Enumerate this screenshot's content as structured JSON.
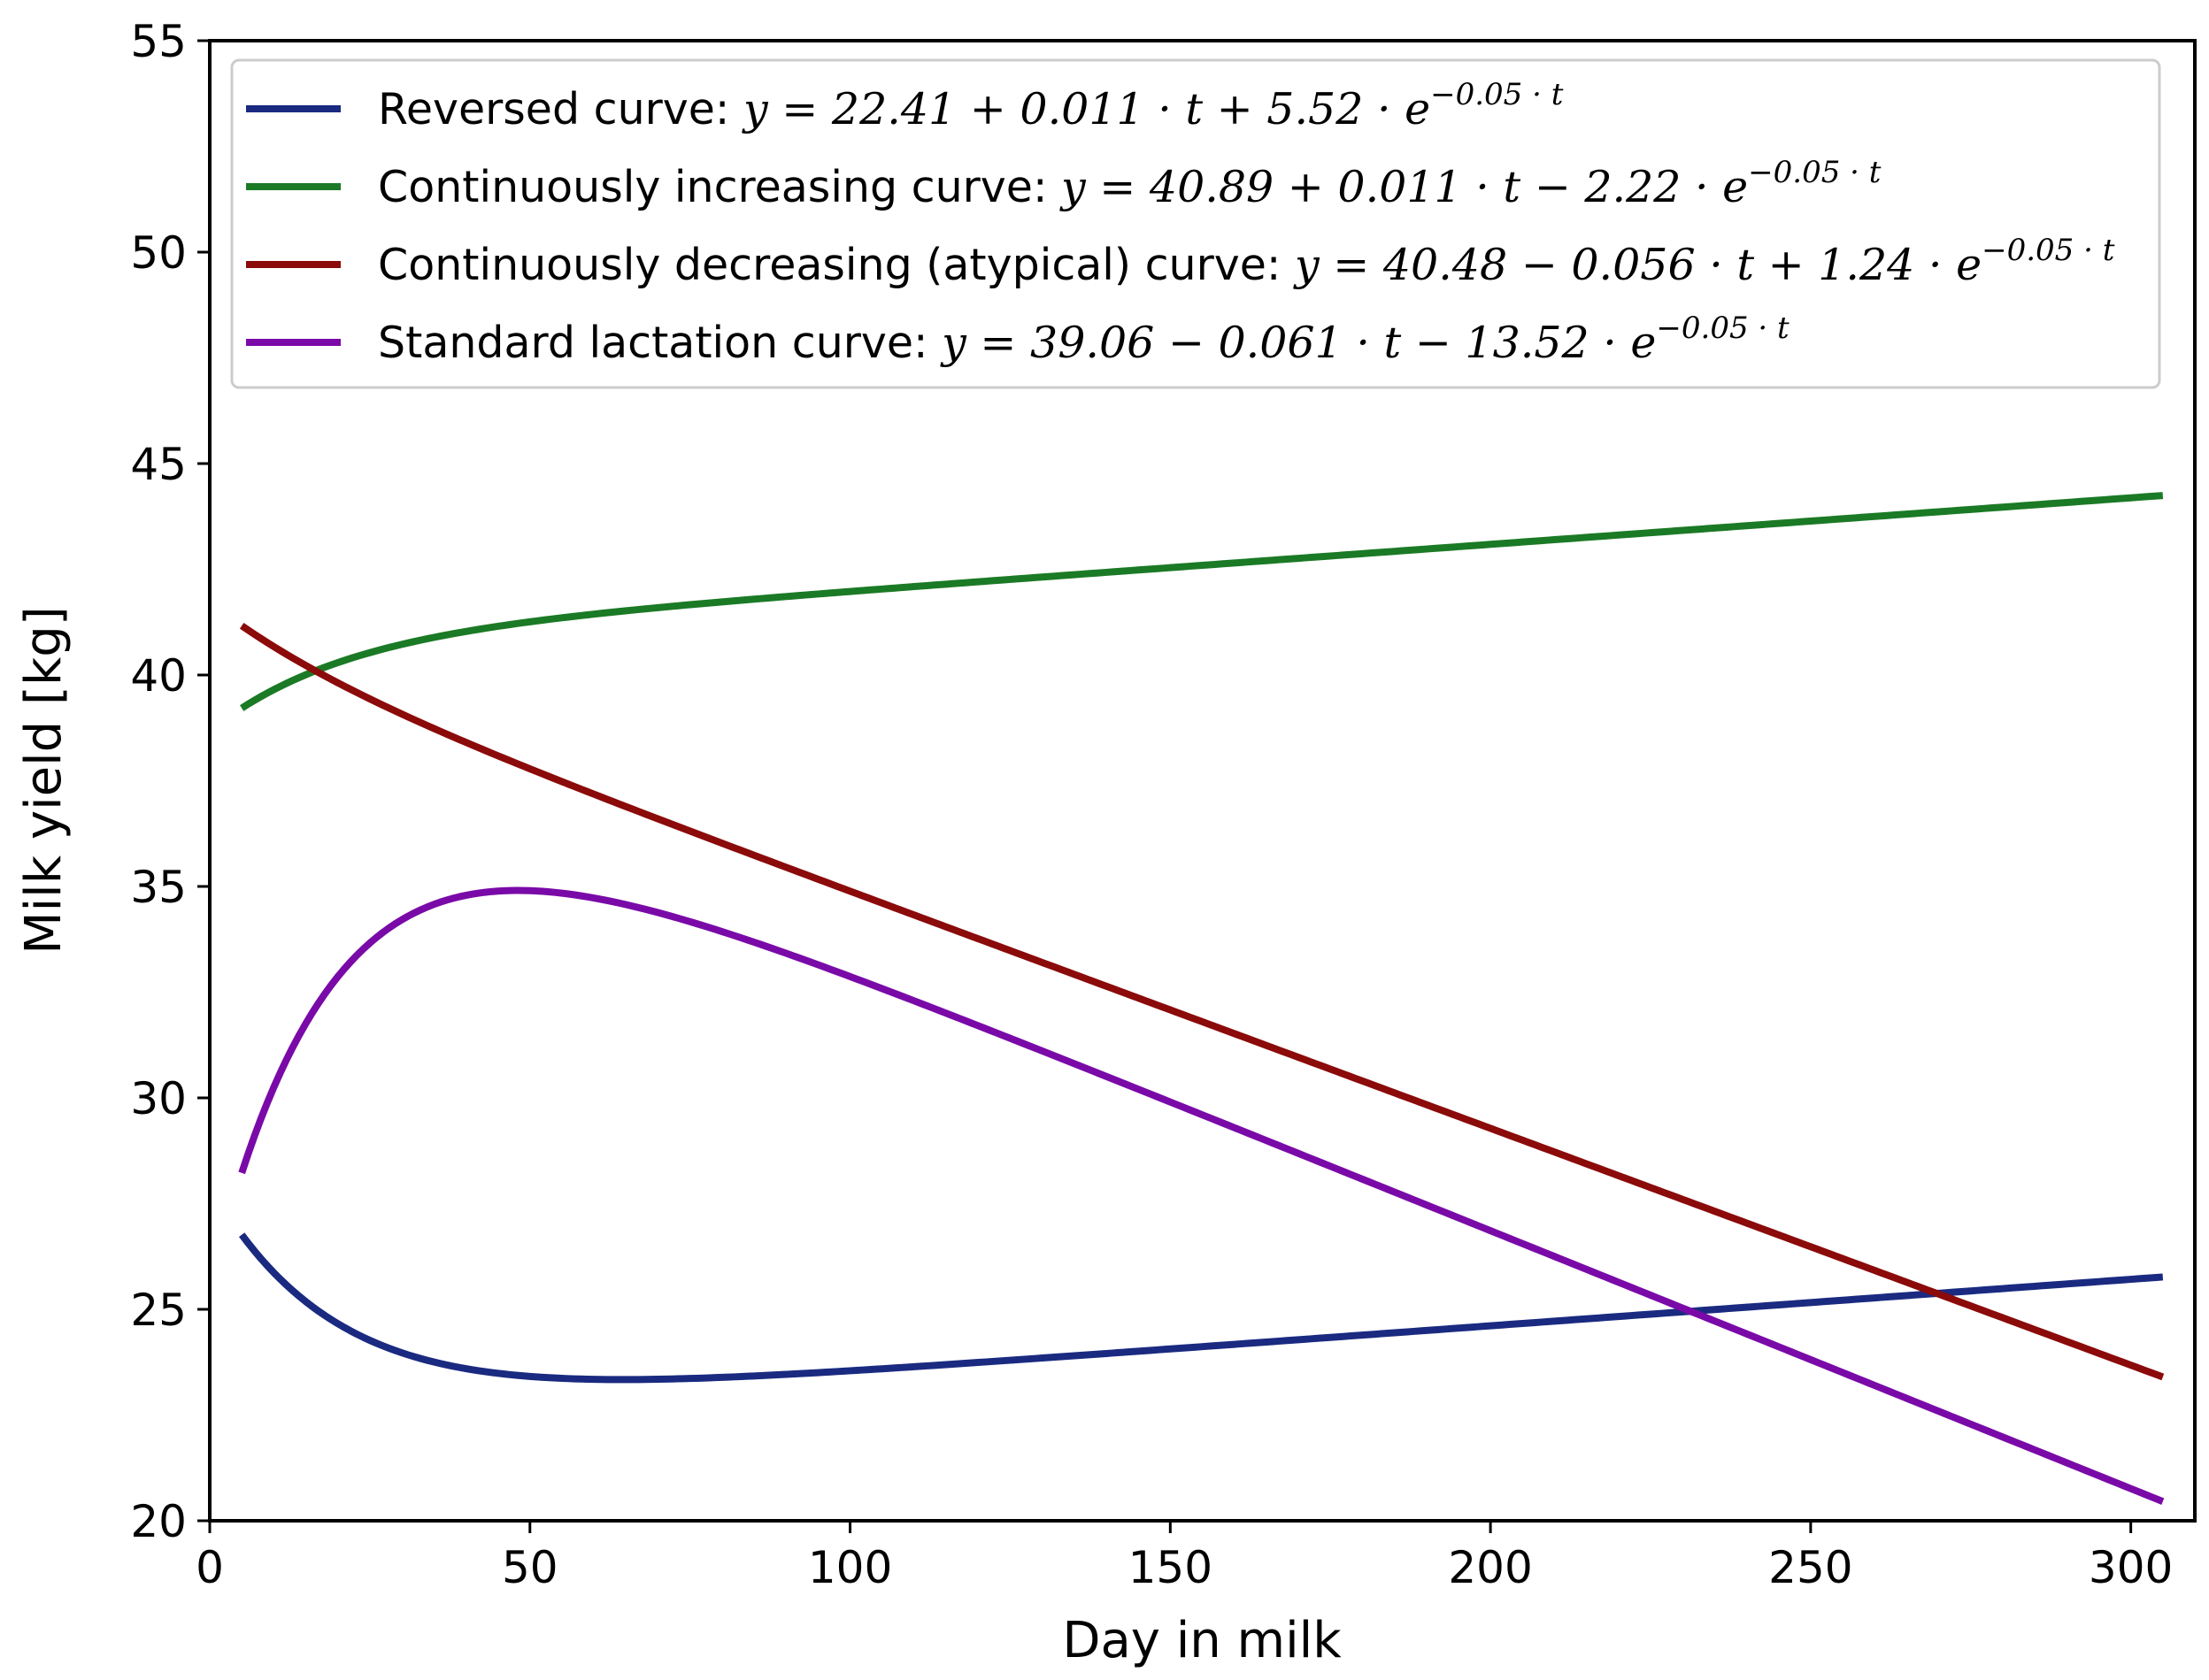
{
  "chart_data": {
    "type": "line",
    "title": "",
    "xlabel": "Day in milk",
    "ylabel": "Milk yield [kg]",
    "xlim": [
      0,
      310
    ],
    "ylim": [
      20,
      55
    ],
    "x_range": [
      5,
      305
    ],
    "xticks": [
      0,
      50,
      100,
      150,
      200,
      250,
      300
    ],
    "yticks": [
      20,
      25,
      30,
      35,
      40,
      45,
      50,
      55
    ],
    "grid": false,
    "legend_position": "top-left",
    "series": [
      {
        "name": "Reversed curve",
        "color": "#1a2a80",
        "a": 22.41,
        "b": 0.011,
        "c": 5.52,
        "k": 0.05,
        "legend_prefix": "Reversed curve: ",
        "legend_eq": "y = 22.41 + 0.011 · t + 5.52 · e",
        "legend_exp": "−0.05 · t"
      },
      {
        "name": "Continuously increasing curve",
        "color": "#1b7a25",
        "a": 40.89,
        "b": 0.011,
        "c": -2.22,
        "k": 0.05,
        "legend_prefix": "Continuously increasing curve: ",
        "legend_eq": "y = 40.89 + 0.011 · t − 2.22 · e",
        "legend_exp": "−0.05 · t"
      },
      {
        "name": "Continuously decreasing (atypical) curve",
        "color": "#8b0a0a",
        "a": 40.48,
        "b": -0.056,
        "c": 1.24,
        "k": 0.05,
        "legend_prefix": "Continuously decreasing (atypical) curve: ",
        "legend_eq": "y = 40.48 − 0.056 · t + 1.24 · e",
        "legend_exp": "−0.05 · t"
      },
      {
        "name": "Standard lactation curve",
        "color": "#7a0aa8",
        "a": 39.06,
        "b": -0.061,
        "c": -13.52,
        "k": 0.05,
        "legend_prefix": "Standard lactation curve: ",
        "legend_eq": "y = 39.06 − 0.061 · t − 13.52 · e",
        "legend_exp": "−0.05 · t"
      }
    ]
  }
}
